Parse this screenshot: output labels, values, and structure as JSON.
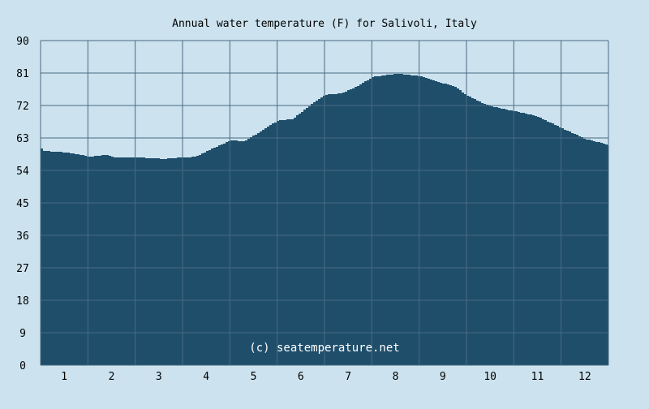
{
  "chart_data": {
    "type": "area",
    "title": "Annual water temperature (F) for Salivoli, Italy",
    "watermark": "(c) seatemperature.net",
    "xlabel": "",
    "ylabel": "",
    "xlim": [
      0.5,
      12.5
    ],
    "ylim": [
      0,
      90
    ],
    "grid": true,
    "x_ticks": [
      "1",
      "2",
      "3",
      "4",
      "5",
      "6",
      "7",
      "8",
      "9",
      "10",
      "11",
      "12"
    ],
    "y_ticks": [
      "0",
      "9",
      "18",
      "27",
      "36",
      "45",
      "54",
      "63",
      "72",
      "81",
      "90"
    ],
    "colors": {
      "background": "#cce3ef",
      "fill": "#1f4e6b",
      "grid": "#4a6a82"
    },
    "series": [
      {
        "name": "Water temperature (F)",
        "x": [
          0.5,
          0.55,
          1.01,
          1.36,
          1.5,
          1.87,
          2.04,
          2.5,
          3.07,
          3.5,
          3.76,
          4.1,
          4.5,
          4.79,
          5.13,
          5.5,
          5.8,
          6.17,
          6.5,
          6.84,
          7.18,
          7.5,
          7.7,
          8.04,
          8.5,
          8.9,
          9.24,
          9.5,
          9.93,
          10.5,
          10.96,
          11.5,
          11.98,
          12.5
        ],
        "y": [
          60.1,
          59.4,
          59.0,
          58.3,
          57.8,
          58.3,
          57.6,
          57.6,
          57.2,
          57.6,
          57.8,
          60.0,
          62.3,
          62.1,
          64.8,
          67.9,
          68.2,
          72.0,
          75.0,
          75.4,
          77.4,
          79.9,
          80.3,
          80.8,
          80.1,
          78.5,
          77.2,
          74.7,
          72.0,
          70.4,
          69.1,
          65.7,
          62.8,
          61.0
        ]
      }
    ]
  }
}
